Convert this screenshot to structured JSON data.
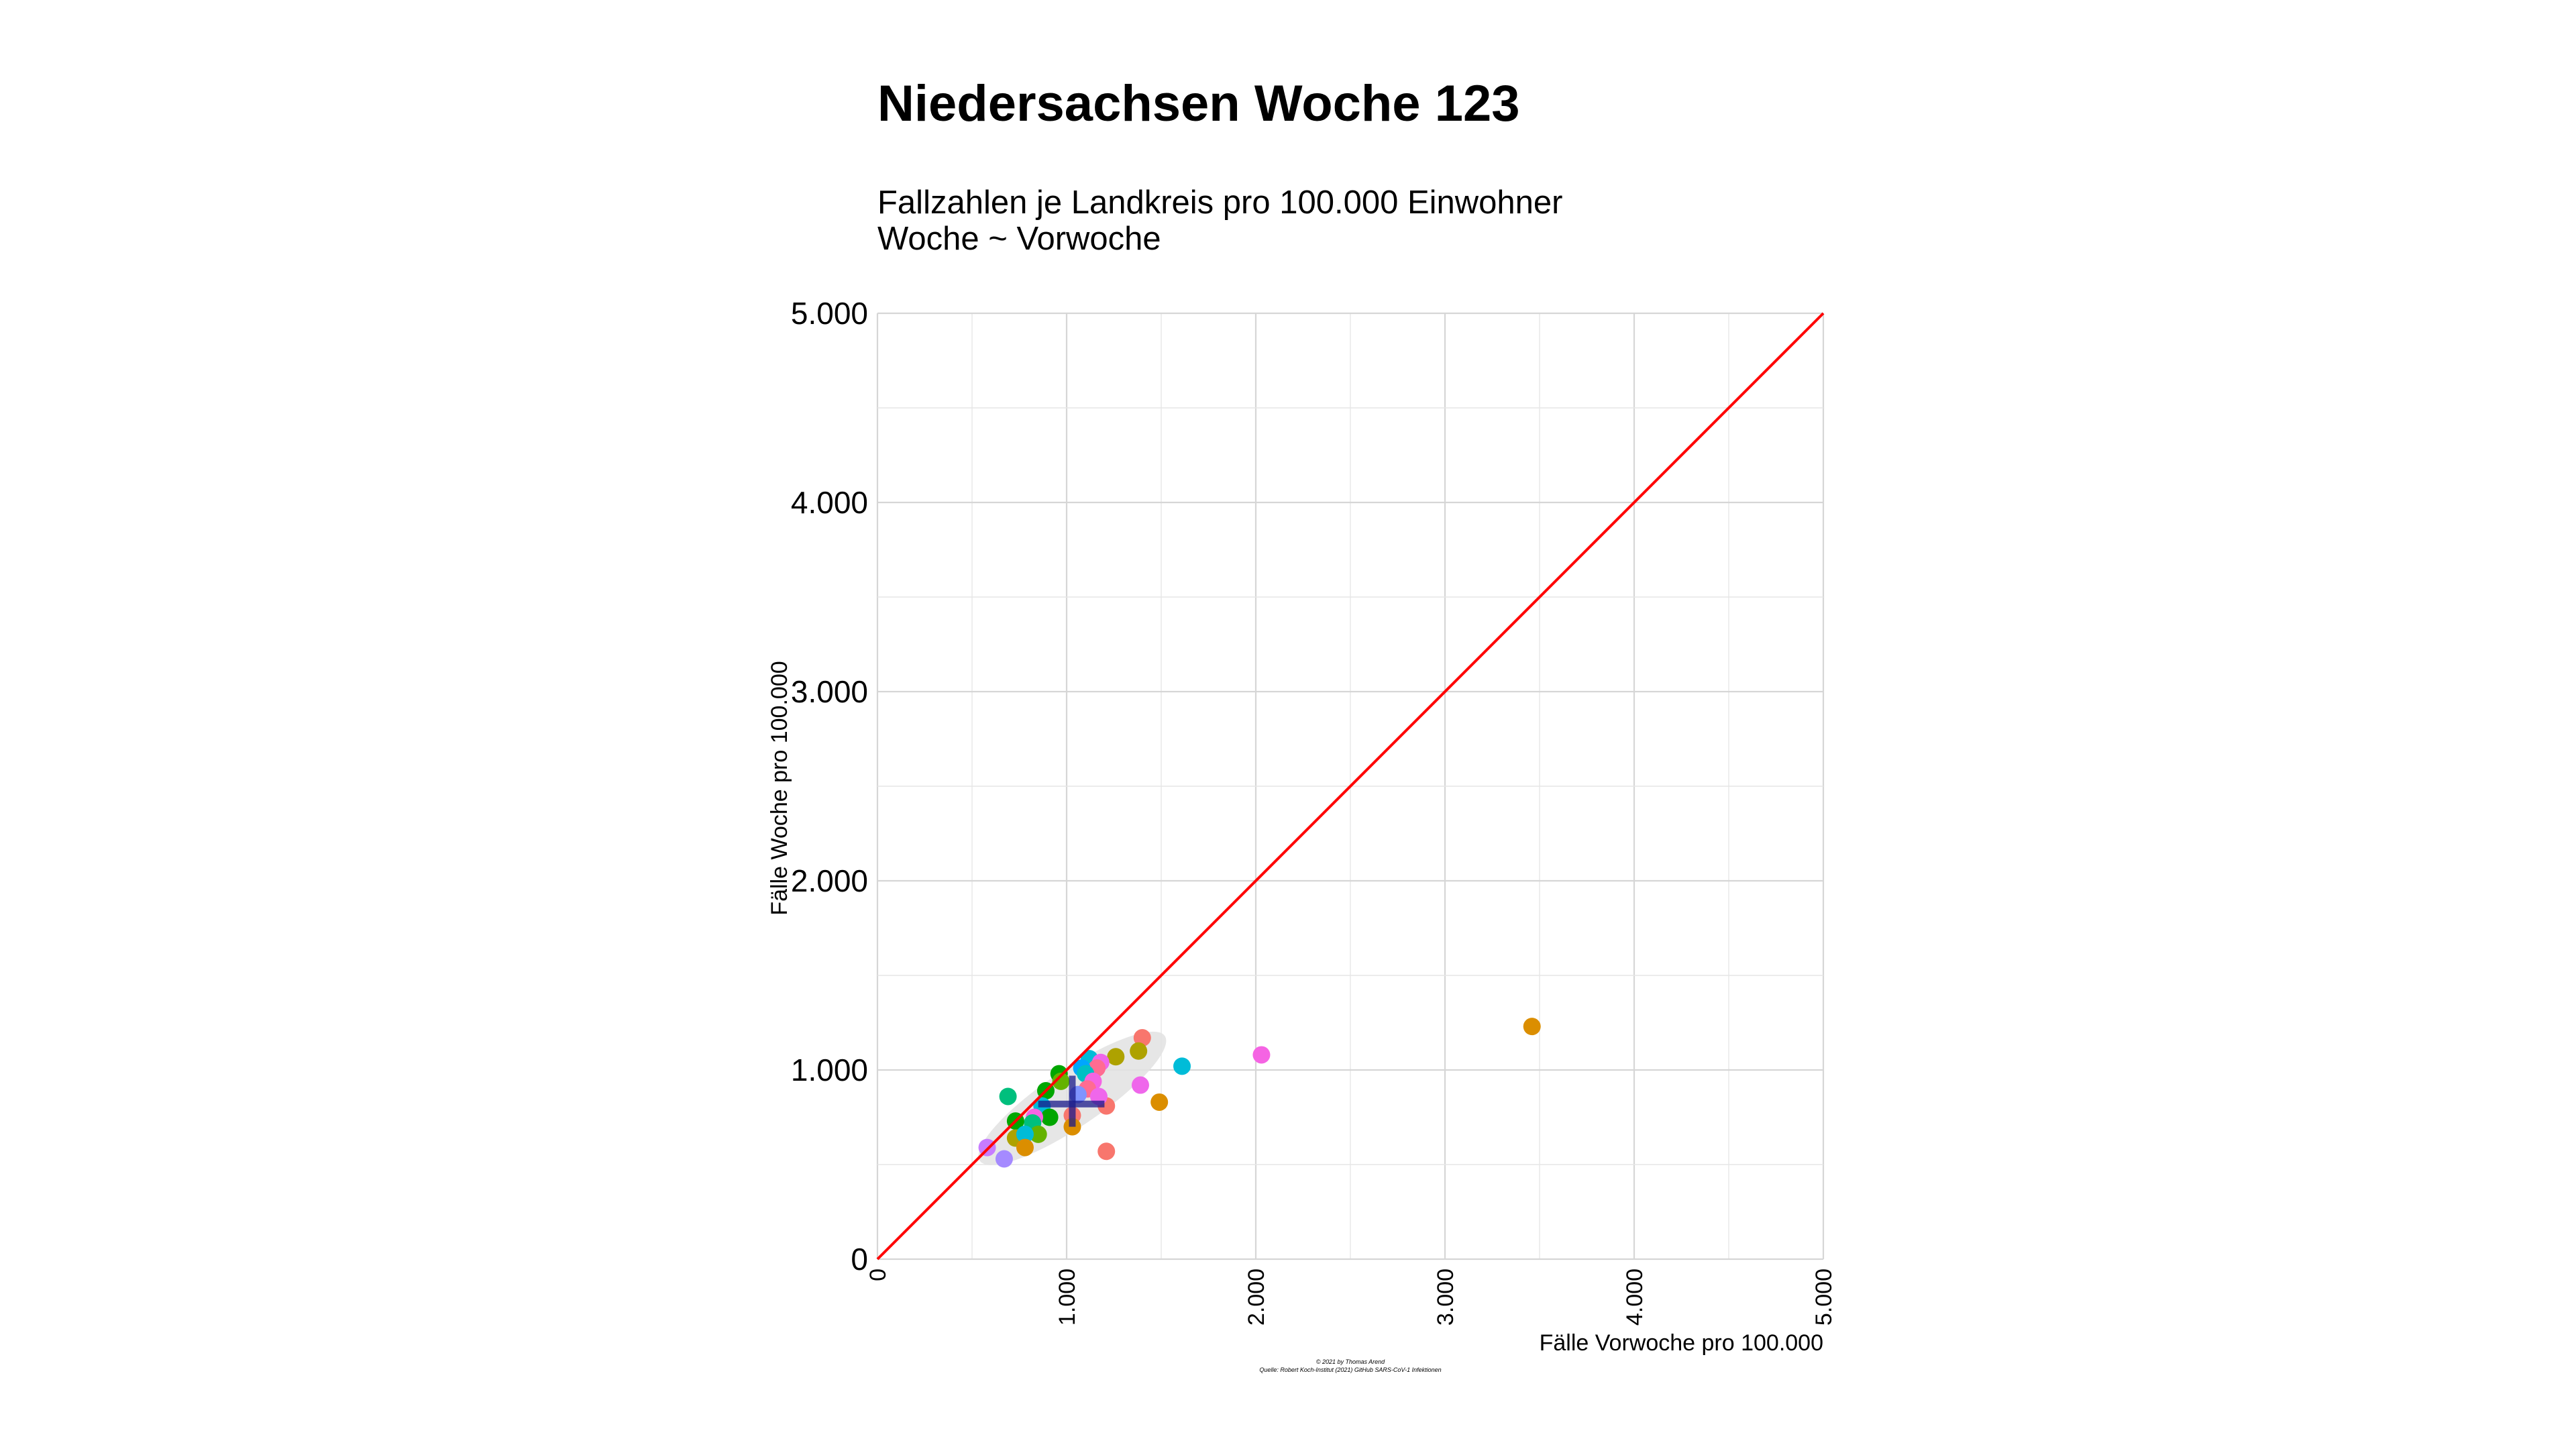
{
  "chart_data": {
    "type": "scatter",
    "title": "Niedersachsen Woche 123",
    "subtitle": [
      "Fallzahlen je Landkreis pro 100.000 Einwohner",
      "Woche ~ Vorwoche"
    ],
    "xlabel": "Fälle Vorwoche pro 100.000",
    "ylabel": "Fälle Woche pro 100.000",
    "xlim": [
      0,
      5000
    ],
    "ylim": [
      0,
      5000
    ],
    "x_ticks": [
      {
        "value": 0,
        "label": "0"
      },
      {
        "value": 1000,
        "label": "1.000"
      },
      {
        "value": 2000,
        "label": "2.000"
      },
      {
        "value": 3000,
        "label": "3.000"
      },
      {
        "value": 4000,
        "label": "4.000"
      },
      {
        "value": 5000,
        "label": "5.000"
      }
    ],
    "y_ticks": [
      {
        "value": 0,
        "label": "0"
      },
      {
        "value": 1000,
        "label": "1.000"
      },
      {
        "value": 2000,
        "label": "2.000"
      },
      {
        "value": 3000,
        "label": "3.000"
      },
      {
        "value": 4000,
        "label": "4.000"
      },
      {
        "value": 5000,
        "label": "5.000"
      }
    ],
    "grid": true,
    "legend": "none",
    "reference_line": {
      "from": [
        0,
        0
      ],
      "to": [
        5000,
        5000
      ],
      "color": "#ff0000"
    },
    "ellipse": {
      "cx": 1030,
      "cy": 850,
      "semi_major": 590,
      "semi_minor": 150,
      "angle_deg": 34,
      "color": "#e2e2e2"
    },
    "crosshair": {
      "x": 1030,
      "y": 820,
      "x_range": [
        850,
        1200
      ],
      "y_range": [
        700,
        970
      ],
      "color": "#1a1a8a"
    },
    "points": [
      {
        "x": 3460,
        "y": 1230,
        "color": "#DB8E00"
      },
      {
        "x": 2030,
        "y": 1080,
        "color": "#F564E3"
      },
      {
        "x": 1610,
        "y": 1020,
        "color": "#00BCD8"
      },
      {
        "x": 1400,
        "y": 1170,
        "color": "#F8766D"
      },
      {
        "x": 1380,
        "y": 1100,
        "color": "#AEA200"
      },
      {
        "x": 1390,
        "y": 920,
        "color": "#EF67EB"
      },
      {
        "x": 1490,
        "y": 830,
        "color": "#DB8E00"
      },
      {
        "x": 1260,
        "y": 1070,
        "color": "#AEA200"
      },
      {
        "x": 1210,
        "y": 810,
        "color": "#F8766D"
      },
      {
        "x": 1210,
        "y": 570,
        "color": "#F8766D"
      },
      {
        "x": 1120,
        "y": 1060,
        "color": "#00BCD8"
      },
      {
        "x": 1180,
        "y": 1040,
        "color": "#EF67EB"
      },
      {
        "x": 1160,
        "y": 1010,
        "color": "#FF6C91"
      },
      {
        "x": 1080,
        "y": 1010,
        "color": "#00A6FF"
      },
      {
        "x": 1100,
        "y": 980,
        "color": "#00BFC4"
      },
      {
        "x": 1140,
        "y": 940,
        "color": "#F564E3"
      },
      {
        "x": 1110,
        "y": 900,
        "color": "#FF6C91"
      },
      {
        "x": 1170,
        "y": 860,
        "color": "#EF67EB"
      },
      {
        "x": 1060,
        "y": 870,
        "color": "#8094FF"
      },
      {
        "x": 1030,
        "y": 760,
        "color": "#F8766D"
      },
      {
        "x": 1030,
        "y": 700,
        "color": "#DB8E00"
      },
      {
        "x": 960,
        "y": 980,
        "color": "#00A600"
      },
      {
        "x": 970,
        "y": 940,
        "color": "#64B200"
      },
      {
        "x": 890,
        "y": 890,
        "color": "#00A600"
      },
      {
        "x": 870,
        "y": 810,
        "color": "#00BCD8"
      },
      {
        "x": 910,
        "y": 750,
        "color": "#00A600"
      },
      {
        "x": 830,
        "y": 750,
        "color": "#F564E3"
      },
      {
        "x": 820,
        "y": 720,
        "color": "#00BF7D"
      },
      {
        "x": 850,
        "y": 660,
        "color": "#64B200"
      },
      {
        "x": 690,
        "y": 860,
        "color": "#00BF7D"
      },
      {
        "x": 730,
        "y": 730,
        "color": "#00A600"
      },
      {
        "x": 730,
        "y": 640,
        "color": "#AEA200"
      },
      {
        "x": 780,
        "y": 660,
        "color": "#00BCD8"
      },
      {
        "x": 780,
        "y": 590,
        "color": "#DB8E00"
      },
      {
        "x": 580,
        "y": 590,
        "color": "#C77CFF"
      },
      {
        "x": 670,
        "y": 530,
        "color": "#A58AFF"
      }
    ],
    "point_size": 13
  },
  "caption": [
    "© 2021 by Thomas Arend",
    "Quelle: Robert Koch-Institut (2021) GitHub SARS-CoV-1 Infektionen"
  ]
}
